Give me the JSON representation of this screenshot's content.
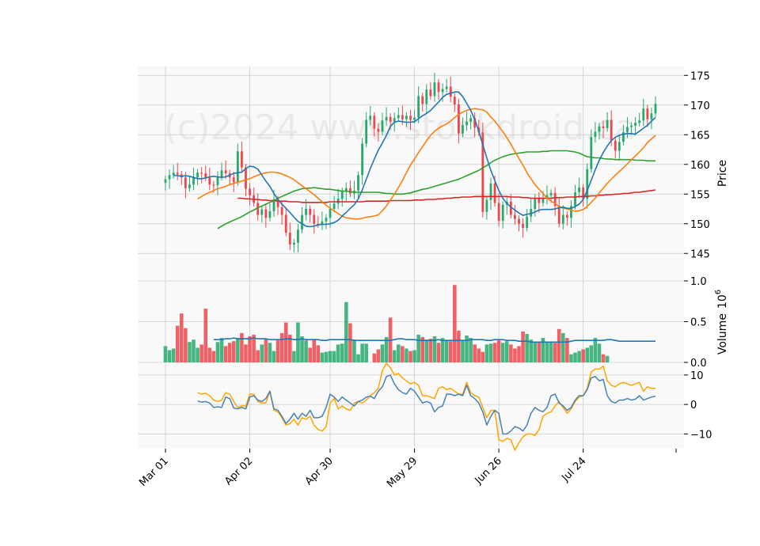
{
  "chart_data": {
    "type": "candlestick",
    "watermark": "(c)2024 www.stockdroid.ca",
    "x_tick_labels": [
      "Mar 01",
      "Apr 02",
      "Apr 30",
      "May 29",
      "Jun 26",
      "Jul 24"
    ],
    "x_tick_indices": [
      0,
      21,
      41,
      62,
      83,
      104
    ],
    "colors": {
      "up": "#26a96c",
      "down": "#f0454a",
      "ma_short": "#1f77b4",
      "ma_mid": "#ff7f0e",
      "ma_long": "#2ca02c",
      "ma_longest": "#d62728",
      "osc_fast": "#4682b4",
      "osc_slow": "#ffa500",
      "vol_ma": "#1f77b4"
    },
    "price_panel": {
      "ylabel": "Price",
      "ylim": [
        140.5,
        176.5
      ],
      "yticks": [
        145,
        150,
        155,
        160,
        165,
        170,
        175
      ],
      "ytick_labels": [
        "145",
        "150",
        "155",
        "160",
        "165",
        "170",
        "175"
      ]
    },
    "volume_panel": {
      "ylabel": "Volume",
      "ylabel_exponent": "10",
      "ylabel_exponent_power": "6",
      "ylim": [
        0,
        1.0
      ],
      "yticks": [
        0.0,
        0.5,
        1.0
      ],
      "ytick_labels": [
        "0.0",
        "0.5",
        "1.0"
      ]
    },
    "oscillator_panel": {
      "ylim": [
        -15,
        14
      ],
      "yticks": [
        -10,
        0,
        10
      ],
      "ytick_labels": [
        "−10",
        "0",
        "10"
      ]
    },
    "closes": [
      157.5,
      158.2,
      158.6,
      158.3,
      157.8,
      156.0,
      156.6,
      157.8,
      158.6,
      158.5,
      157.8,
      156.6,
      156.5,
      157.9,
      159.0,
      158.5,
      157.8,
      157.0,
      162.2,
      159.5,
      155.9,
      154.8,
      153.5,
      151.5,
      152.4,
      151.0,
      152.1,
      154.1,
      152.8,
      151.5,
      148.5,
      146.5,
      146.8,
      149.0,
      151.5,
      152.5,
      151.5,
      150.0,
      149.9,
      150.4,
      151.0,
      152.5,
      153.4,
      154.2,
      155.5,
      156.0,
      155.1,
      155.6,
      158.2,
      163.5,
      167.5,
      168.2,
      166.0,
      165.5,
      167.4,
      168.0,
      167.2,
      167.8,
      168.3,
      167.6,
      168.2,
      167.5,
      167.9,
      171.5,
      170.2,
      172.6,
      171.5,
      173.8,
      172.2,
      172.7,
      173.1,
      171.4,
      170.1,
      165.2,
      166.6,
      167.2,
      167.8,
      166.2,
      165.4,
      152.0,
      154.0,
      156.8,
      153.5,
      150.5,
      153.2,
      153.7,
      151.5,
      150.8,
      150.0,
      149.3,
      151.2,
      152.5,
      154.4,
      153.5,
      154.2,
      154.8,
      155.2,
      153.0,
      150.0,
      151.5,
      151.0,
      153.0,
      155.3,
      156.1,
      154.2,
      159.2,
      164.6,
      165.5,
      166.4,
      166.1,
      167.5,
      164.0,
      162.3,
      163.8,
      165.4,
      166.3,
      166.5,
      167.0,
      167.4,
      169.4,
      167.6,
      168.6,
      170.2
    ],
    "volumes": [
      0.2,
      0.15,
      0.17,
      0.45,
      0.6,
      0.42,
      0.25,
      0.28,
      0.18,
      0.22,
      0.66,
      0.18,
      0.14,
      0.25,
      0.3,
      0.2,
      0.24,
      0.26,
      0.3,
      0.36,
      0.22,
      0.32,
      0.34,
      0.15,
      0.22,
      0.29,
      0.24,
      0.14,
      0.27,
      0.36,
      0.49,
      0.34,
      0.14,
      0.49,
      0.32,
      0.27,
      0.18,
      0.28,
      0.21,
      0.12,
      0.13,
      0.14,
      0.14,
      0.22,
      0.23,
      0.74,
      0.48,
      0.28,
      0.1,
      0.23,
      0.23,
      0.0,
      0.11,
      0.16,
      0.22,
      0.31,
      0.55,
      0.15,
      0.22,
      0.2,
      0.17,
      0.14,
      0.15,
      0.34,
      0.31,
      0.28,
      0.29,
      0.32,
      0.24,
      0.3,
      0.27,
      0.26,
      0.95,
      0.39,
      0.27,
      0.33,
      0.3,
      0.22,
      0.17,
      0.13,
      0.22,
      0.23,
      0.24,
      0.27,
      0.24,
      0.26,
      0.22,
      0.17,
      0.2,
      0.38,
      0.35,
      0.28,
      0.25,
      0.25,
      0.3,
      0.25,
      0.25,
      0.24,
      0.41,
      0.36,
      0.3,
      0.1,
      0.12,
      0.14,
      0.16,
      0.18,
      0.21,
      0.3,
      0.23,
      0.1,
      0.08
    ],
    "ma_short": [
      158.2,
      158.1,
      158.0,
      158.1,
      158.0,
      157.8,
      157.6,
      157.6,
      157.7,
      157.9,
      158.0,
      157.9,
      157.8,
      157.9,
      158.2,
      158.5,
      158.6,
      158.7,
      159.3,
      159.7,
      159.6,
      159.2,
      158.2,
      157.2,
      156.3,
      155.1,
      154.1,
      153.3,
      152.6,
      151.9,
      151.1,
      150.4,
      150.0,
      149.6,
      149.5,
      149.6,
      149.8,
      149.9,
      149.9,
      150.0,
      150.2,
      150.6,
      151.3,
      151.9,
      152.6,
      153.2,
      154.2,
      155.7,
      157.5,
      159.3,
      160.9,
      162.4,
      163.6,
      164.9,
      166.4,
      167.1,
      167.3,
      167.2,
      167.1,
      167.1,
      167.2,
      167.7,
      168.2,
      168.6,
      169.1,
      169.8,
      170.5,
      171.3,
      171.8,
      172.0,
      172.2,
      172.2,
      171.4,
      170.3,
      169.1,
      167.6,
      165.6,
      163.3,
      161.1,
      159.0,
      157.3,
      155.6,
      154.3,
      153.4,
      152.8,
      152.3,
      151.8,
      151.4,
      151.6,
      151.7,
      152.0,
      152.3,
      152.4,
      152.4,
      152.4,
      152.5,
      152.7,
      152.8,
      152.6,
      152.6,
      152.9,
      153.3,
      154.1,
      155.6,
      157.3,
      159.1,
      160.7,
      162.0,
      163.1,
      164.0,
      164.6,
      164.9,
      165.1,
      165.2,
      165.2,
      165.1,
      165.6,
      166.1,
      166.6,
      167.3,
      167.9
    ],
    "ma_mid": [
      154.2,
      154.6,
      155.0,
      155.3,
      155.6,
      155.9,
      156.1,
      156.3,
      156.6,
      156.8,
      157.0,
      157.2,
      157.4,
      157.6,
      157.9,
      158.2,
      158.4,
      158.6,
      158.7,
      158.7,
      158.6,
      158.4,
      158.1,
      157.8,
      157.4,
      156.9,
      156.4,
      155.9,
      155.4,
      154.9,
      154.3,
      153.7,
      153.1,
      152.6,
      152.2,
      151.7,
      151.3,
      151.0,
      150.9,
      150.8,
      150.8,
      150.9,
      151.1,
      151.2,
      151.3,
      151.5,
      152.2,
      153.0,
      154.0,
      155.0,
      156.1,
      157.3,
      158.6,
      159.9,
      160.9,
      162.0,
      163.0,
      164.0,
      164.9,
      165.6,
      166.1,
      166.5,
      166.8,
      167.3,
      167.9,
      168.4,
      168.8,
      169.1,
      169.3,
      169.4,
      169.3,
      169.2,
      168.8,
      168.0,
      167.3,
      166.4,
      165.5,
      164.5,
      163.4,
      162.2,
      161.0,
      159.9,
      158.6,
      157.6,
      156.6,
      155.8,
      155.1,
      154.3,
      153.8,
      153.4,
      152.9,
      152.6,
      152.5,
      152.3,
      152.1,
      152.2,
      152.4,
      152.9,
      153.6,
      154.3,
      155.2,
      156.0,
      156.8,
      157.5,
      158.2,
      158.8,
      159.4,
      160.1,
      160.8,
      161.4,
      162.1,
      162.8,
      163.7,
      164.3,
      164.9
    ],
    "ma_long": [
      149.2,
      149.6,
      150.0,
      150.3,
      150.6,
      150.9,
      151.2,
      151.6,
      152.0,
      152.3,
      152.7,
      153.0,
      153.3,
      153.6,
      153.9,
      154.3,
      154.6,
      154.9,
      155.2,
      155.5,
      155.7,
      155.9,
      156.0,
      156.0,
      156.1,
      156.0,
      155.9,
      155.8,
      155.8,
      155.7,
      155.6,
      155.5,
      155.5,
      155.4,
      155.3,
      155.3,
      155.3,
      155.3,
      155.3,
      155.3,
      155.3,
      155.2,
      155.1,
      155.1,
      155.0,
      155.0,
      155.0,
      155.1,
      155.2,
      155.4,
      155.6,
      155.8,
      155.9,
      156.1,
      156.3,
      156.5,
      156.7,
      156.9,
      157.1,
      157.3,
      157.5,
      157.8,
      158.1,
      158.4,
      158.7,
      159.0,
      159.4,
      159.8,
      160.3,
      160.7,
      161.0,
      161.3,
      161.5,
      161.7,
      161.8,
      161.9,
      162.0,
      162.1,
      162.1,
      162.1,
      162.1,
      162.2,
      162.2,
      162.3,
      162.3,
      162.3,
      162.3,
      162.3,
      162.2,
      162.1,
      161.9,
      161.6,
      161.3,
      161.2,
      161.1,
      161.1,
      161.0,
      160.9,
      160.9,
      160.8,
      160.8,
      160.8,
      160.8,
      160.8,
      160.7,
      160.7,
      160.7,
      160.6,
      160.6,
      160.6
    ],
    "ma_longest": [
      154.3,
      154.3,
      154.2,
      154.2,
      154.1,
      154.1,
      154.0,
      154.0,
      153.9,
      153.9,
      153.8,
      153.8,
      153.8,
      153.7,
      153.7,
      153.7,
      153.6,
      153.6,
      153.6,
      153.6,
      153.6,
      153.6,
      153.6,
      153.7,
      153.7,
      153.7,
      153.7,
      153.7,
      153.7,
      153.7,
      153.7,
      153.7,
      153.8,
      153.8,
      153.8,
      153.8,
      153.8,
      153.8,
      153.9,
      153.9,
      153.9,
      153.9,
      153.9,
      153.9,
      154.0,
      154.0,
      154.0,
      154.1,
      154.1,
      154.1,
      154.2,
      154.2,
      154.3,
      154.3,
      154.4,
      154.4,
      154.5,
      154.5,
      154.5,
      154.6,
      154.6,
      154.6,
      154.6,
      154.6,
      154.6,
      154.6,
      154.6,
      154.6,
      154.5,
      154.5,
      154.5,
      154.4,
      154.4,
      154.3,
      154.3,
      154.3,
      154.3,
      154.3,
      154.3,
      154.4,
      154.4,
      154.4,
      154.5,
      154.5,
      154.5,
      154.6,
      154.6,
      154.6,
      154.7,
      154.7,
      154.8,
      154.8,
      154.9,
      154.9,
      155.0,
      155.0,
      155.1,
      155.1,
      155.2,
      155.3,
      155.3,
      155.4,
      155.5,
      155.6,
      155.7
    ],
    "vol_ma": [
      0.28,
      0.28,
      0.28,
      0.29,
      0.29,
      0.3,
      0.29,
      0.29,
      0.29,
      0.29,
      0.3,
      0.29,
      0.29,
      0.29,
      0.28,
      0.28,
      0.28,
      0.28,
      0.29,
      0.29,
      0.28,
      0.28,
      0.29,
      0.28,
      0.28,
      0.28,
      0.28,
      0.27,
      0.27,
      0.28,
      0.28,
      0.28,
      0.28,
      0.28,
      0.28,
      0.27,
      0.27,
      0.27,
      0.27,
      0.27,
      0.27,
      0.27,
      0.27,
      0.27,
      0.27,
      0.28,
      0.29,
      0.29,
      0.28,
      0.28,
      0.28,
      0.27,
      0.27,
      0.27,
      0.27,
      0.27,
      0.28,
      0.27,
      0.27,
      0.27,
      0.27,
      0.27,
      0.27,
      0.27,
      0.28,
      0.28,
      0.28,
      0.28,
      0.27,
      0.27,
      0.28,
      0.28,
      0.28,
      0.27,
      0.27,
      0.27,
      0.26,
      0.26,
      0.26,
      0.25,
      0.25,
      0.25,
      0.25,
      0.25,
      0.25,
      0.25,
      0.25,
      0.25,
      0.25,
      0.26,
      0.27,
      0.27,
      0.27,
      0.27,
      0.27,
      0.27,
      0.27,
      0.27,
      0.28,
      0.28,
      0.27,
      0.26,
      0.26,
      0.26,
      0.26,
      0.26,
      0.26,
      0.26,
      0.26,
      0.26,
      0.26
    ],
    "osc_fast": [
      1.2,
      0.8,
      1.0,
      0.5,
      -1.0,
      -0.8,
      -1.0,
      2.5,
      2.0,
      -1.2,
      -1.5,
      -1.0,
      -1.5,
      2.5,
      3.0,
      1.5,
      1.0,
      2.0,
      4.5,
      -1.5,
      -2.0,
      -4.0,
      -6.5,
      -5.0,
      -3.0,
      -5.0,
      -3.0,
      -4.0,
      -2.0,
      -4.5,
      -4.5,
      -4.0,
      -1.0,
      3.5,
      2.5,
      1.0,
      2.5,
      1.5,
      0.5,
      -0.5,
      1.0,
      1.5,
      2.5,
      2.8,
      2.0,
      4.5,
      6.0,
      9.5,
      10.0,
      7.0,
      5.0,
      4.0,
      3.5,
      5.5,
      4.5,
      2.5,
      0.5,
      1.0,
      0.5,
      -2.5,
      -1.0,
      -0.5,
      3.5,
      3.5,
      3.0,
      3.5,
      3.0,
      6.5,
      3.0,
      2.0,
      0.5,
      -2.5,
      -7.0,
      -4.0,
      -2.0,
      -3.0,
      -10.0,
      -10.0,
      -9.0,
      -7.5,
      -8.0,
      -9.0,
      -7.0,
      -3.0,
      -1.0,
      -2.0,
      -2.5,
      -1.0,
      3.0,
      3.5,
      0.5,
      -0.5,
      -2.0,
      -1.0,
      1.5,
      3.0,
      3.0,
      5.0,
      9.0,
      9.5,
      8.0,
      8.5,
      3.0,
      1.0,
      0.5,
      1.5,
      1.5,
      2.0,
      1.5,
      1.8,
      3.0,
      1.5,
      2.0,
      2.5,
      2.8
    ],
    "osc_slow": [
      4.0,
      3.5,
      3.8,
      3.0,
      1.5,
      1.0,
      1.5,
      4.0,
      3.5,
      1.0,
      -1.0,
      -0.5,
      -0.5,
      3.5,
      3.5,
      1.0,
      0.5,
      0.5,
      4.5,
      -2.0,
      -2.5,
      -4.5,
      -7.0,
      -6.5,
      -5.0,
      -7.0,
      -4.5,
      -5.0,
      -4.0,
      -7.0,
      -8.5,
      -9.0,
      -7.5,
      0.5,
      2.0,
      -1.5,
      -0.5,
      -1.5,
      -2.0,
      0.5,
      1.0,
      0.5,
      1.5,
      3.0,
      4.0,
      5.5,
      11.5,
      14.0,
      12.5,
      10.0,
      10.5,
      9.0,
      8.0,
      7.0,
      7.5,
      6.5,
      3.0,
      3.0,
      2.5,
      2.0,
      5.5,
      6.0,
      5.0,
      5.5,
      4.5,
      3.5,
      3.5,
      7.5,
      4.0,
      3.0,
      2.5,
      -1.0,
      -4.5,
      -2.0,
      -2.0,
      -12.0,
      -12.5,
      -11.5,
      -12.0,
      -15.5,
      -13.0,
      -11.0,
      -10.0,
      -10.0,
      -10.5,
      -8.5,
      -4.0,
      -3.0,
      -2.5,
      -0.5,
      1.0,
      -1.0,
      -3.0,
      -1.5,
      1.0,
      2.5,
      3.0,
      5.5,
      11.0,
      12.0,
      12.0,
      13.0,
      8.0,
      6.5,
      6.0,
      7.0,
      7.5,
      7.0,
      6.5,
      7.0,
      7.5,
      4.5,
      6.0,
      5.5,
      5.5
    ]
  }
}
